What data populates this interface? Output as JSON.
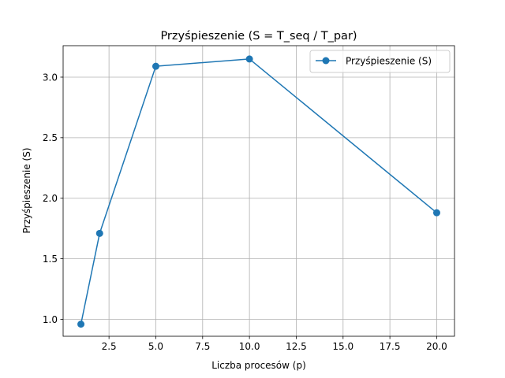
{
  "chart_data": {
    "type": "line",
    "title": "Przyśpieszenie (S = T_seq / T_par)",
    "xlabel": "Liczba procesów (p)",
    "ylabel": "Przyśpieszenie (S)",
    "x": [
      1,
      2,
      5,
      10,
      20
    ],
    "series": [
      {
        "name": "Przyśpieszenie (S)",
        "values": [
          0.96,
          1.71,
          3.09,
          3.15,
          1.88
        ],
        "color": "#1f77b4",
        "marker": "circle"
      }
    ],
    "xlim": [
      0.05,
      20.95
    ],
    "ylim": [
      0.86,
      3.26
    ],
    "xticks": [
      2.5,
      5.0,
      7.5,
      10.0,
      12.5,
      15.0,
      17.5,
      20.0
    ],
    "xtick_labels": [
      "2.5",
      "5.0",
      "7.5",
      "10.0",
      "12.5",
      "15.0",
      "17.5",
      "20.0"
    ],
    "yticks": [
      1.0,
      1.5,
      2.0,
      2.5,
      3.0
    ],
    "ytick_labels": [
      "1.0",
      "1.5",
      "2.0",
      "2.5",
      "3.0"
    ],
    "grid": true,
    "legend_position": "top-right"
  }
}
